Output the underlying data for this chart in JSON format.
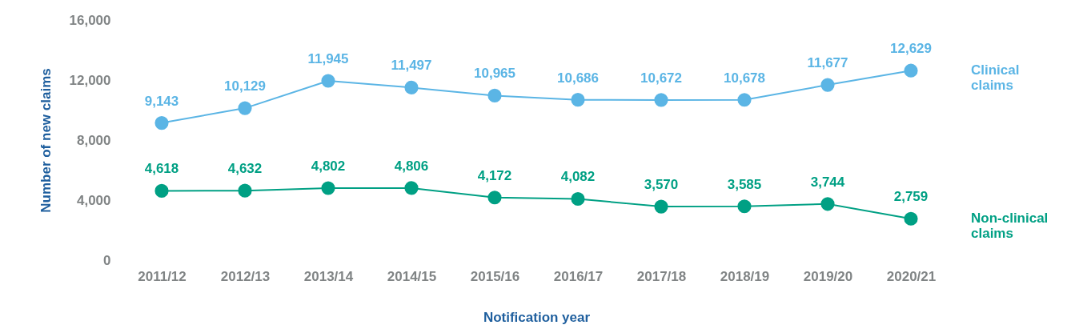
{
  "chart_data": {
    "type": "line",
    "xlabel": "Notification year",
    "ylabel": "Number of new claims",
    "categories": [
      "2011/12",
      "2012/13",
      "2013/14",
      "2014/15",
      "2015/16",
      "2016/17",
      "2017/18",
      "2018/19",
      "2019/20",
      "2020/21"
    ],
    "series": [
      {
        "name": "Clinical claims",
        "color": "#5bb5e5",
        "values": [
          9143,
          10129,
          11945,
          11497,
          10965,
          10686,
          10672,
          10678,
          11677,
          12629
        ],
        "value_labels": [
          "9,143",
          "10,129",
          "11,945",
          "11,497",
          "10,965",
          "10,686",
          "10,672",
          "10,678",
          "11,677",
          "12,629"
        ]
      },
      {
        "name": "Non-clinical claims",
        "color": "#00a084",
        "values": [
          4618,
          4632,
          4802,
          4806,
          4172,
          4082,
          3570,
          3585,
          3744,
          2759
        ],
        "value_labels": [
          "4,618",
          "4,632",
          "4,802",
          "4,806",
          "4,172",
          "4,082",
          "3,570",
          "3,585",
          "3,744",
          "2,759"
        ]
      }
    ],
    "ylim": [
      0,
      16000
    ],
    "yticks": [
      {
        "value": 0,
        "label": "0"
      },
      {
        "value": 4000,
        "label": "4,000"
      },
      {
        "value": 8000,
        "label": "8,000"
      },
      {
        "value": 12000,
        "label": "12,000"
      },
      {
        "value": 16000,
        "label": "16,000"
      }
    ],
    "grid": false,
    "legend": false,
    "marker": "circle",
    "line_style": "solid"
  }
}
